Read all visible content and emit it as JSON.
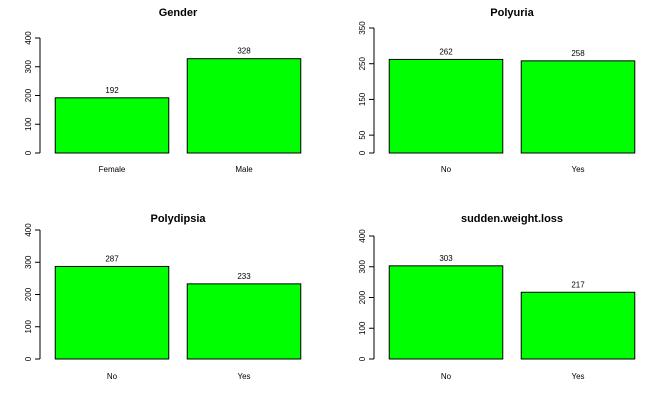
{
  "chart_data": [
    {
      "type": "bar",
      "title": "Gender",
      "categories": [
        "Female",
        "Male"
      ],
      "values": [
        192,
        328
      ],
      "data_labels": [
        "192",
        "328"
      ],
      "ylim": [
        0,
        400
      ],
      "yticks": [
        0,
        100,
        200,
        300,
        400
      ],
      "ytick_labels": [
        "0",
        "100",
        "200",
        "300",
        "400"
      ],
      "bar_color": "#00ff00",
      "grid": false
    },
    {
      "type": "bar",
      "title": "Polyuria",
      "categories": [
        "No",
        "Yes"
      ],
      "values": [
        262,
        258
      ],
      "data_labels": [
        "262",
        "258"
      ],
      "ylim": [
        0,
        350
      ],
      "yticks": [
        0,
        50,
        150,
        250,
        350
      ],
      "ytick_labels": [
        "0",
        "50",
        "150",
        "250",
        "350"
      ],
      "bar_color": "#00ff00",
      "grid": false
    },
    {
      "type": "bar",
      "title": "Polydipsia",
      "categories": [
        "No",
        "Yes"
      ],
      "values": [
        287,
        233
      ],
      "data_labels": [
        "287",
        "233"
      ],
      "ylim": [
        0,
        400
      ],
      "yticks": [
        0,
        100,
        200,
        300,
        400
      ],
      "ytick_labels": [
        "0",
        "100",
        "200",
        "300",
        "400"
      ],
      "bar_color": "#00ff00",
      "grid": false
    },
    {
      "type": "bar",
      "title": "sudden.weight.loss",
      "categories": [
        "No",
        "Yes"
      ],
      "values": [
        303,
        217
      ],
      "data_labels": [
        "303",
        "217"
      ],
      "ylim": [
        0,
        400
      ],
      "yticks": [
        0,
        100,
        200,
        300,
        400
      ],
      "ytick_labels": [
        "0",
        "100",
        "200",
        "300",
        "400"
      ],
      "bar_color": "#00ff00",
      "grid": false
    }
  ]
}
